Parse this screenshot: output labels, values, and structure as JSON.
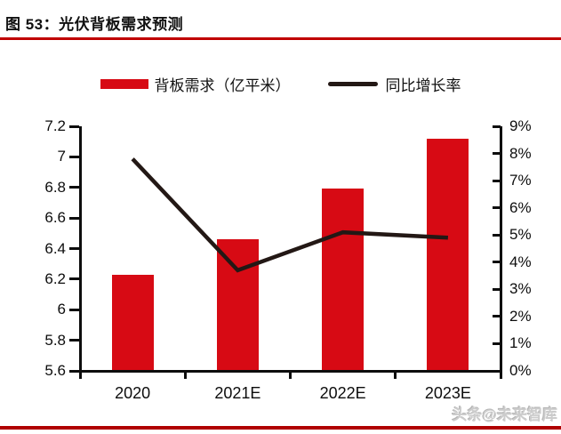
{
  "header": {
    "title": "图 53：光伏背板需求预测"
  },
  "legend": {
    "bar_label": "背板需求（亿平米）",
    "line_label": "同比增长率"
  },
  "watermark": "头条@未来智库",
  "colors": {
    "bar": "#d70a14",
    "line": "#231815",
    "axis": "#0d0d0d",
    "title_rule": "#c00000",
    "bottom_rule": "#b00000"
  },
  "chart_data": {
    "type": "bar+line combo",
    "categories": [
      "2020",
      "2021E",
      "2022E",
      "2023E"
    ],
    "series": [
      {
        "name": "背板需求（亿平米）",
        "type": "bar",
        "axis": "left",
        "values": [
          6.23,
          6.46,
          6.79,
          7.12
        ]
      },
      {
        "name": "同比增长率",
        "type": "line",
        "axis": "right",
        "values_percent": [
          7.8,
          3.7,
          5.1,
          4.9
        ]
      }
    ],
    "left_axis": {
      "min": 5.6,
      "max": 7.2,
      "step": 0.2,
      "tick_labels": [
        "5.6",
        "5.8",
        "6",
        "6.2",
        "6.4",
        "6.6",
        "6.8",
        "7",
        "7.2"
      ]
    },
    "right_axis": {
      "min": 0,
      "max": 9,
      "step": 1,
      "tick_labels": [
        "0%",
        "1%",
        "2%",
        "3%",
        "4%",
        "5%",
        "6%",
        "7%",
        "8%",
        "9%"
      ]
    },
    "grid": false,
    "legend_position": "top"
  }
}
